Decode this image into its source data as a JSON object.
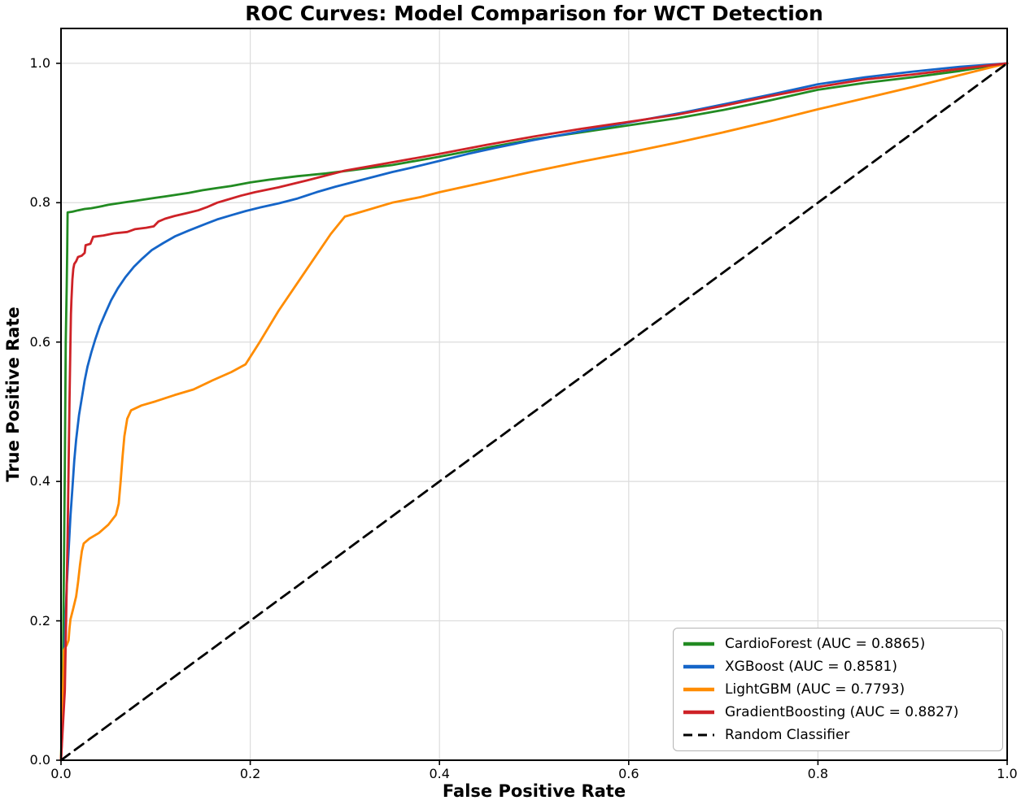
{
  "chart_data": {
    "type": "line",
    "title": "ROC Curves: Model Comparison for WCT Detection",
    "xlabel": "False Positive Rate",
    "ylabel": "True Positive Rate",
    "xlim": [
      0.0,
      1.0
    ],
    "ylim": [
      0.0,
      1.05
    ],
    "grid": true,
    "grid_color": "#dcdcdc",
    "axis_color": "#000000",
    "legend_position": "lower right",
    "x_ticks": {
      "values": [
        0.0,
        0.2,
        0.4,
        0.6,
        0.8,
        1.0
      ],
      "labels": [
        "0.0",
        "0.2",
        "0.4",
        "0.6",
        "0.8",
        "1.0"
      ]
    },
    "y_ticks": {
      "values": [
        0.0,
        0.2,
        0.4,
        0.6,
        0.8,
        1.0
      ],
      "labels": [
        "0.0",
        "0.2",
        "0.4",
        "0.6",
        "0.8",
        "1.0"
      ]
    },
    "series": [
      {
        "name": "CardioForest",
        "auc": 0.8865,
        "color": "#228B22",
        "style": "solid",
        "legend_label": "CardioForest (AUC = 0.8865)",
        "points": [
          [
            0,
            0
          ],
          [
            0.002,
            0.12
          ],
          [
            0.004,
            0.42
          ],
          [
            0.005,
            0.6
          ],
          [
            0.006,
            0.68
          ],
          [
            0.0065,
            0.73
          ],
          [
            0.007,
            0.786
          ],
          [
            0.012,
            0.787
          ],
          [
            0.018,
            0.789
          ],
          [
            0.025,
            0.791
          ],
          [
            0.032,
            0.792
          ],
          [
            0.04,
            0.794
          ],
          [
            0.05,
            0.797
          ],
          [
            0.06,
            0.799
          ],
          [
            0.07,
            0.801
          ],
          [
            0.08,
            0.803
          ],
          [
            0.09,
            0.805
          ],
          [
            0.1,
            0.807
          ],
          [
            0.11,
            0.809
          ],
          [
            0.12,
            0.811
          ],
          [
            0.135,
            0.814
          ],
          [
            0.15,
            0.818
          ],
          [
            0.165,
            0.821
          ],
          [
            0.18,
            0.824
          ],
          [
            0.2,
            0.829
          ],
          [
            0.22,
            0.833
          ],
          [
            0.25,
            0.838
          ],
          [
            0.28,
            0.842
          ],
          [
            0.31,
            0.847
          ],
          [
            0.35,
            0.854
          ],
          [
            0.4,
            0.866
          ],
          [
            0.45,
            0.879
          ],
          [
            0.5,
            0.891
          ],
          [
            0.55,
            0.901
          ],
          [
            0.6,
            0.911
          ],
          [
            0.65,
            0.921
          ],
          [
            0.7,
            0.933
          ],
          [
            0.75,
            0.947
          ],
          [
            0.8,
            0.962
          ],
          [
            0.85,
            0.972
          ],
          [
            0.9,
            0.98
          ],
          [
            0.95,
            0.989
          ],
          [
            1,
            1
          ]
        ]
      },
      {
        "name": "XGBoost",
        "auc": 0.8581,
        "color": "#1565C8",
        "style": "solid",
        "legend_label": "XGBoost (AUC = 0.8581)",
        "points": [
          [
            0,
            0
          ],
          [
            0.002,
            0.06
          ],
          [
            0.003,
            0.12
          ],
          [
            0.004,
            0.17
          ],
          [
            0.005,
            0.21
          ],
          [
            0.006,
            0.25
          ],
          [
            0.008,
            0.3
          ],
          [
            0.01,
            0.35
          ],
          [
            0.012,
            0.39
          ],
          [
            0.014,
            0.43
          ],
          [
            0.016,
            0.46
          ],
          [
            0.019,
            0.495
          ],
          [
            0.022,
            0.52
          ],
          [
            0.025,
            0.545
          ],
          [
            0.028,
            0.565
          ],
          [
            0.032,
            0.585
          ],
          [
            0.036,
            0.603
          ],
          [
            0.041,
            0.623
          ],
          [
            0.047,
            0.642
          ],
          [
            0.053,
            0.66
          ],
          [
            0.06,
            0.677
          ],
          [
            0.068,
            0.693
          ],
          [
            0.077,
            0.708
          ],
          [
            0.086,
            0.72
          ],
          [
            0.096,
            0.732
          ],
          [
            0.108,
            0.742
          ],
          [
            0.121,
            0.752
          ],
          [
            0.135,
            0.76
          ],
          [
            0.15,
            0.768
          ],
          [
            0.165,
            0.776
          ],
          [
            0.18,
            0.782
          ],
          [
            0.195,
            0.788
          ],
          [
            0.21,
            0.793
          ],
          [
            0.23,
            0.799
          ],
          [
            0.25,
            0.806
          ],
          [
            0.27,
            0.815
          ],
          [
            0.29,
            0.823
          ],
          [
            0.31,
            0.83
          ],
          [
            0.33,
            0.837
          ],
          [
            0.35,
            0.844
          ],
          [
            0.37,
            0.85
          ],
          [
            0.4,
            0.86
          ],
          [
            0.43,
            0.87
          ],
          [
            0.46,
            0.879
          ],
          [
            0.5,
            0.89
          ],
          [
            0.54,
            0.9
          ],
          [
            0.58,
            0.91
          ],
          [
            0.62,
            0.92
          ],
          [
            0.66,
            0.93
          ],
          [
            0.7,
            0.941
          ],
          [
            0.75,
            0.955
          ],
          [
            0.8,
            0.97
          ],
          [
            0.85,
            0.98
          ],
          [
            0.9,
            0.988
          ],
          [
            0.95,
            0.995
          ],
          [
            1,
            1
          ]
        ]
      },
      {
        "name": "LightGBM",
        "auc": 0.7793,
        "color": "#FF8C00",
        "style": "solid",
        "legend_label": "LightGBM (AUC = 0.7793)",
        "points": [
          [
            0,
            0
          ],
          [
            0.002,
            0.09
          ],
          [
            0.003,
            0.158
          ],
          [
            0.006,
            0.165
          ],
          [
            0.008,
            0.172
          ],
          [
            0.009,
            0.19
          ],
          [
            0.01,
            0.202
          ],
          [
            0.013,
            0.218
          ],
          [
            0.016,
            0.235
          ],
          [
            0.018,
            0.255
          ],
          [
            0.02,
            0.28
          ],
          [
            0.022,
            0.3
          ],
          [
            0.024,
            0.311
          ],
          [
            0.03,
            0.318
          ],
          [
            0.04,
            0.326
          ],
          [
            0.05,
            0.338
          ],
          [
            0.058,
            0.352
          ],
          [
            0.061,
            0.368
          ],
          [
            0.063,
            0.4
          ],
          [
            0.065,
            0.435
          ],
          [
            0.067,
            0.465
          ],
          [
            0.07,
            0.49
          ],
          [
            0.074,
            0.502
          ],
          [
            0.085,
            0.509
          ],
          [
            0.1,
            0.515
          ],
          [
            0.12,
            0.524
          ],
          [
            0.14,
            0.532
          ],
          [
            0.16,
            0.545
          ],
          [
            0.18,
            0.557
          ],
          [
            0.195,
            0.568
          ],
          [
            0.21,
            0.6
          ],
          [
            0.23,
            0.645
          ],
          [
            0.26,
            0.705
          ],
          [
            0.285,
            0.755
          ],
          [
            0.3,
            0.78
          ],
          [
            0.32,
            0.788
          ],
          [
            0.35,
            0.8
          ],
          [
            0.38,
            0.808
          ],
          [
            0.4,
            0.815
          ],
          [
            0.45,
            0.83
          ],
          [
            0.5,
            0.845
          ],
          [
            0.55,
            0.859
          ],
          [
            0.6,
            0.872
          ],
          [
            0.65,
            0.886
          ],
          [
            0.7,
            0.901
          ],
          [
            0.75,
            0.917
          ],
          [
            0.8,
            0.934
          ],
          [
            0.85,
            0.95
          ],
          [
            0.9,
            0.966
          ],
          [
            0.95,
            0.983
          ],
          [
            1,
            1
          ]
        ]
      },
      {
        "name": "GradientBoosting",
        "auc": 0.8827,
        "color": "#CE2227",
        "style": "solid",
        "legend_label": "GradientBoosting (AUC = 0.8827)",
        "points": [
          [
            0,
            0
          ],
          [
            0.004,
            0.1
          ],
          [
            0.007,
            0.32
          ],
          [
            0.009,
            0.52
          ],
          [
            0.01,
            0.6
          ],
          [
            0.0105,
            0.64
          ],
          [
            0.011,
            0.66
          ],
          [
            0.012,
            0.69
          ],
          [
            0.013,
            0.705
          ],
          [
            0.014,
            0.712
          ],
          [
            0.016,
            0.716
          ],
          [
            0.018,
            0.722
          ],
          [
            0.022,
            0.724
          ],
          [
            0.025,
            0.728
          ],
          [
            0.026,
            0.739
          ],
          [
            0.031,
            0.741
          ],
          [
            0.034,
            0.751
          ],
          [
            0.045,
            0.753
          ],
          [
            0.056,
            0.756
          ],
          [
            0.07,
            0.758
          ],
          [
            0.078,
            0.762
          ],
          [
            0.09,
            0.764
          ],
          [
            0.098,
            0.766
          ],
          [
            0.103,
            0.773
          ],
          [
            0.11,
            0.777
          ],
          [
            0.12,
            0.781
          ],
          [
            0.133,
            0.785
          ],
          [
            0.145,
            0.789
          ],
          [
            0.155,
            0.794
          ],
          [
            0.165,
            0.8
          ],
          [
            0.175,
            0.804
          ],
          [
            0.19,
            0.81
          ],
          [
            0.205,
            0.815
          ],
          [
            0.23,
            0.822
          ],
          [
            0.26,
            0.832
          ],
          [
            0.3,
            0.846
          ],
          [
            0.35,
            0.858
          ],
          [
            0.4,
            0.87
          ],
          [
            0.45,
            0.883
          ],
          [
            0.5,
            0.895
          ],
          [
            0.55,
            0.906
          ],
          [
            0.6,
            0.916
          ],
          [
            0.65,
            0.926
          ],
          [
            0.7,
            0.939
          ],
          [
            0.75,
            0.953
          ],
          [
            0.8,
            0.966
          ],
          [
            0.85,
            0.977
          ],
          [
            0.9,
            0.984
          ],
          [
            0.95,
            0.992
          ],
          [
            1,
            1
          ]
        ]
      },
      {
        "name": "Random Classifier",
        "auc": null,
        "color": "#000000",
        "style": "dashed",
        "legend_label": "Random Classifier",
        "points": [
          [
            0,
            0
          ],
          [
            1,
            1
          ]
        ]
      }
    ]
  }
}
